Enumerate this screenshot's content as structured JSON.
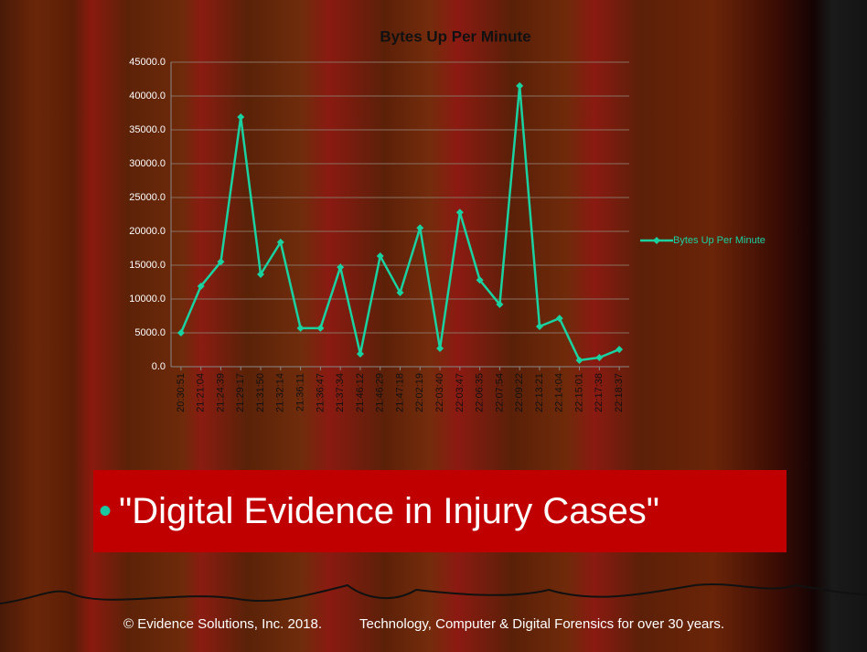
{
  "chart_data": {
    "type": "line",
    "title": "Bytes Up Per Minute",
    "categories": [
      "20:30:51",
      "21:21:04",
      "21:24:39",
      "21:29:17",
      "21:31:50",
      "21:32:14",
      "21:36:11",
      "21:36:47",
      "21:37:34",
      "21:46:12",
      "21:46:29",
      "21:47:18",
      "22:02:19",
      "22:03:40",
      "22:03:47",
      "22:06:35",
      "22:07:54",
      "22:09:22",
      "22:13:21",
      "22:14:04",
      "22:15:01",
      "22:17:38",
      "22:18:37"
    ],
    "series": [
      {
        "name": "Bytes Up Per Minute",
        "color": "#1ad1a0",
        "values": [
          5000,
          11900,
          15500,
          36900,
          13650,
          18400,
          5700,
          5700,
          14700,
          1900,
          16350,
          10950,
          20500,
          2700,
          22800,
          12800,
          9200,
          41500,
          5950,
          7150,
          950,
          1350,
          2550
        ]
      }
    ],
    "ylim": [
      0,
      45000
    ],
    "yticks": [
      {
        "value": 0,
        "label": "0.0"
      },
      {
        "value": 5000,
        "label": "5000.0"
      },
      {
        "value": 10000,
        "label": "10000.0"
      },
      {
        "value": 15000,
        "label": "15000.0"
      },
      {
        "value": 20000,
        "label": "20000.0"
      },
      {
        "value": 25000,
        "label": "25000.0"
      },
      {
        "value": 30000,
        "label": "30000.0"
      },
      {
        "value": 35000,
        "label": "35000.0"
      },
      {
        "value": 40000,
        "label": "40000.0"
      },
      {
        "value": 45000,
        "label": "45000.0"
      }
    ],
    "grid": true,
    "legend": "right"
  },
  "slide": {
    "bullet": "\"Digital Evidence in Injury Cases\"",
    "footer_left": "© Evidence Solutions, Inc. 2018.",
    "footer_right": "Technology, Computer & Digital Forensics for over 30 years."
  }
}
